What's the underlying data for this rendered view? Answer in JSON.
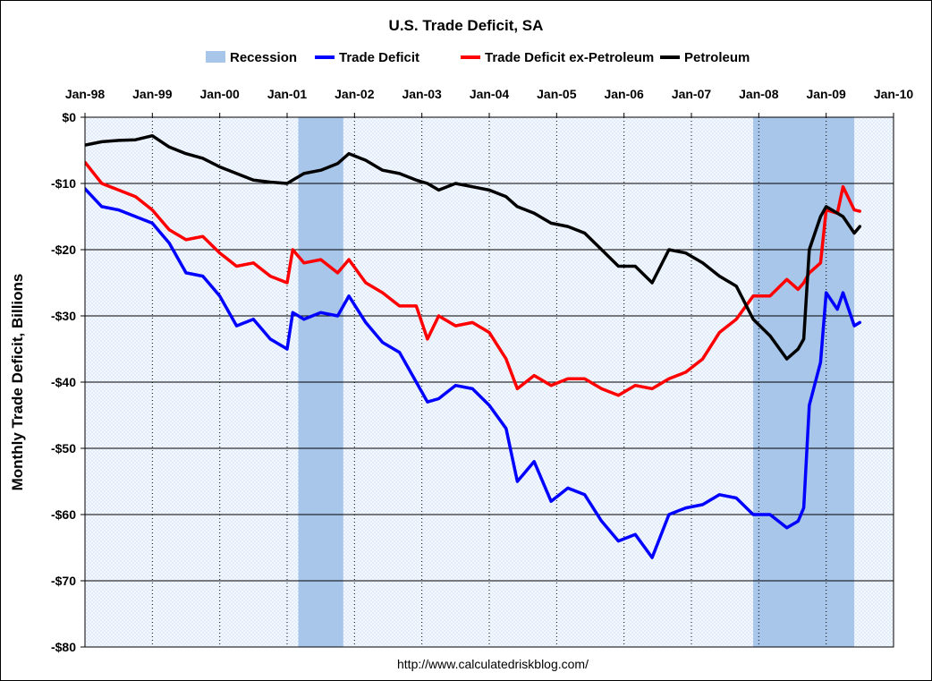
{
  "chart_data": {
    "type": "line",
    "title": "U.S. Trade Deficit, SA",
    "ylabel": "Monthly Trade Deficit, Billions",
    "xlabel": "",
    "source_text": "http://www.calculatedriskblog.com/",
    "x_start": "Jan-98",
    "x_end": "Jan-10",
    "x_ticks": [
      "Jan-98",
      "Jan-99",
      "Jan-00",
      "Jan-01",
      "Jan-02",
      "Jan-03",
      "Jan-04",
      "Jan-05",
      "Jan-06",
      "Jan-07",
      "Jan-08",
      "Jan-09",
      "Jan-10"
    ],
    "y_ticks": [
      "$0",
      "-$10",
      "-$20",
      "-$30",
      "-$40",
      "-$50",
      "-$60",
      "-$70",
      "-$80"
    ],
    "ylim": [
      -80,
      0
    ],
    "grid": true,
    "legend_position": "top",
    "legend": [
      {
        "label": "Recession",
        "color": "#a8c5ea",
        "kind": "band"
      },
      {
        "label": "Trade Deficit",
        "color": "#0000ff",
        "kind": "line"
      },
      {
        "label": "Trade Deficit ex-Petroleum",
        "color": "#ff0000",
        "kind": "line"
      },
      {
        "label": "Petroleum",
        "color": "#000000",
        "kind": "line"
      }
    ],
    "recessions": [
      {
        "start": "Mar-01",
        "end": "Nov-01"
      },
      {
        "start": "Dec-07",
        "end": "Jun-09"
      }
    ],
    "series": [
      {
        "name": "Trade Deficit",
        "color": "#0000ff",
        "points": [
          [
            "Jan-98",
            -10.8
          ],
          [
            "Apr-98",
            -13.5
          ],
          [
            "Jul-98",
            -14.0
          ],
          [
            "Oct-98",
            -15.0
          ],
          [
            "Jan-99",
            -16.0
          ],
          [
            "Apr-99",
            -19.0
          ],
          [
            "Jul-99",
            -23.5
          ],
          [
            "Oct-99",
            -24.0
          ],
          [
            "Jan-00",
            -27.0
          ],
          [
            "Apr-00",
            -31.5
          ],
          [
            "Jul-00",
            -30.5
          ],
          [
            "Oct-00",
            -33.5
          ],
          [
            "Jan-01",
            -35.0
          ],
          [
            "Feb-01",
            -29.5
          ],
          [
            "Apr-01",
            -30.5
          ],
          [
            "Jul-01",
            -29.5
          ],
          [
            "Oct-01",
            -30.0
          ],
          [
            "Dec-01",
            -27.0
          ],
          [
            "Mar-02",
            -31.0
          ],
          [
            "Jun-02",
            -34.0
          ],
          [
            "Sep-02",
            -35.5
          ],
          [
            "Dec-02",
            -40.0
          ],
          [
            "Feb-03",
            -43.0
          ],
          [
            "Apr-03",
            -42.5
          ],
          [
            "Jul-03",
            -40.5
          ],
          [
            "Oct-03",
            -41.0
          ],
          [
            "Jan-04",
            -43.5
          ],
          [
            "Apr-04",
            -47.0
          ],
          [
            "Jun-04",
            -55.0
          ],
          [
            "Sep-04",
            -52.0
          ],
          [
            "Dec-04",
            -58.0
          ],
          [
            "Mar-05",
            -56.0
          ],
          [
            "Jun-05",
            -57.0
          ],
          [
            "Sep-05",
            -61.0
          ],
          [
            "Dec-05",
            -64.0
          ],
          [
            "Mar-06",
            -63.0
          ],
          [
            "Jun-06",
            -66.5
          ],
          [
            "Sep-06",
            -60.0
          ],
          [
            "Dec-06",
            -59.0
          ],
          [
            "Mar-07",
            -58.5
          ],
          [
            "Jun-07",
            -57.0
          ],
          [
            "Sep-07",
            -57.5
          ],
          [
            "Dec-07",
            -60.0
          ],
          [
            "Mar-08",
            -60.0
          ],
          [
            "Jun-08",
            -62.0
          ],
          [
            "Aug-08",
            -61.0
          ],
          [
            "Sep-08",
            -59.0
          ],
          [
            "Oct-08",
            -43.5
          ],
          [
            "Dec-08",
            -37.0
          ],
          [
            "Jan-09",
            -26.5
          ],
          [
            "Mar-09",
            -29.0
          ],
          [
            "Apr-09",
            -26.5
          ],
          [
            "Jun-09",
            -31.5
          ],
          [
            "Jul-09",
            -31.0
          ]
        ]
      },
      {
        "name": "Trade Deficit ex-Petroleum",
        "color": "#ff0000",
        "points": [
          [
            "Jan-98",
            -6.8
          ],
          [
            "Apr-98",
            -10.0
          ],
          [
            "Jul-98",
            -11.0
          ],
          [
            "Oct-98",
            -12.0
          ],
          [
            "Jan-99",
            -14.0
          ],
          [
            "Apr-99",
            -17.0
          ],
          [
            "Jul-99",
            -18.5
          ],
          [
            "Oct-99",
            -18.0
          ],
          [
            "Jan-00",
            -20.5
          ],
          [
            "Apr-00",
            -22.5
          ],
          [
            "Jul-00",
            -22.0
          ],
          [
            "Oct-00",
            -24.0
          ],
          [
            "Jan-01",
            -25.0
          ],
          [
            "Feb-01",
            -20.0
          ],
          [
            "Apr-01",
            -22.0
          ],
          [
            "Jul-01",
            -21.5
          ],
          [
            "Oct-01",
            -23.5
          ],
          [
            "Dec-01",
            -21.5
          ],
          [
            "Mar-02",
            -25.0
          ],
          [
            "Jun-02",
            -26.5
          ],
          [
            "Sep-02",
            -28.5
          ],
          [
            "Dec-02",
            -28.5
          ],
          [
            "Feb-03",
            -33.5
          ],
          [
            "Apr-03",
            -30.0
          ],
          [
            "Jul-03",
            -31.5
          ],
          [
            "Oct-03",
            -31.0
          ],
          [
            "Jan-04",
            -32.5
          ],
          [
            "Apr-04",
            -36.5
          ],
          [
            "Jun-04",
            -41.0
          ],
          [
            "Sep-04",
            -39.0
          ],
          [
            "Dec-04",
            -40.5
          ],
          [
            "Mar-05",
            -39.5
          ],
          [
            "Jun-05",
            -39.5
          ],
          [
            "Sep-05",
            -41.0
          ],
          [
            "Dec-05",
            -42.0
          ],
          [
            "Mar-06",
            -40.5
          ],
          [
            "Jun-06",
            -41.0
          ],
          [
            "Sep-06",
            -39.5
          ],
          [
            "Dec-06",
            -38.5
          ],
          [
            "Mar-07",
            -36.5
          ],
          [
            "Jun-07",
            -32.5
          ],
          [
            "Sep-07",
            -30.5
          ],
          [
            "Dec-07",
            -27.0
          ],
          [
            "Mar-08",
            -27.0
          ],
          [
            "Jun-08",
            -24.5
          ],
          [
            "Aug-08",
            -26.0
          ],
          [
            "Sep-08",
            -25.0
          ],
          [
            "Oct-08",
            -23.5
          ],
          [
            "Dec-08",
            -22.0
          ],
          [
            "Jan-09",
            -14.0
          ],
          [
            "Mar-09",
            -14.5
          ],
          [
            "Apr-09",
            -10.5
          ],
          [
            "Jun-09",
            -14.0
          ],
          [
            "Jul-09",
            -14.2
          ]
        ]
      },
      {
        "name": "Petroleum",
        "color": "#000000",
        "points": [
          [
            "Jan-98",
            -4.2
          ],
          [
            "Apr-98",
            -3.7
          ],
          [
            "Jul-98",
            -3.5
          ],
          [
            "Oct-98",
            -3.4
          ],
          [
            "Jan-99",
            -2.8
          ],
          [
            "Apr-99",
            -4.5
          ],
          [
            "Jul-99",
            -5.5
          ],
          [
            "Oct-99",
            -6.2
          ],
          [
            "Jan-00",
            -7.5
          ],
          [
            "Apr-00",
            -8.5
          ],
          [
            "Jul-00",
            -9.5
          ],
          [
            "Oct-00",
            -9.8
          ],
          [
            "Jan-01",
            -10.0
          ],
          [
            "Feb-01",
            -9.5
          ],
          [
            "Apr-01",
            -8.5
          ],
          [
            "Jul-01",
            -8.0
          ],
          [
            "Oct-01",
            -7.0
          ],
          [
            "Dec-01",
            -5.5
          ],
          [
            "Mar-02",
            -6.5
          ],
          [
            "Jun-02",
            -8.0
          ],
          [
            "Sep-02",
            -8.5
          ],
          [
            "Dec-02",
            -9.5
          ],
          [
            "Feb-03",
            -10.0
          ],
          [
            "Apr-03",
            -11.0
          ],
          [
            "Jul-03",
            -10.0
          ],
          [
            "Oct-03",
            -10.5
          ],
          [
            "Jan-04",
            -11.0
          ],
          [
            "Apr-04",
            -12.0
          ],
          [
            "Jun-04",
            -13.5
          ],
          [
            "Sep-04",
            -14.5
          ],
          [
            "Dec-04",
            -16.0
          ],
          [
            "Mar-05",
            -16.5
          ],
          [
            "Jun-05",
            -17.5
          ],
          [
            "Sep-05",
            -20.0
          ],
          [
            "Dec-05",
            -22.5
          ],
          [
            "Mar-06",
            -22.5
          ],
          [
            "Jun-06",
            -25.0
          ],
          [
            "Sep-06",
            -20.0
          ],
          [
            "Dec-06",
            -20.5
          ],
          [
            "Mar-07",
            -22.0
          ],
          [
            "Jun-07",
            -24.0
          ],
          [
            "Sep-07",
            -25.5
          ],
          [
            "Dec-07",
            -30.5
          ],
          [
            "Mar-08",
            -33.0
          ],
          [
            "Jun-08",
            -36.5
          ],
          [
            "Aug-08",
            -35.0
          ],
          [
            "Sep-08",
            -33.5
          ],
          [
            "Oct-08",
            -20.0
          ],
          [
            "Dec-08",
            -15.0
          ],
          [
            "Jan-09",
            -13.5
          ],
          [
            "Mar-09",
            -14.5
          ],
          [
            "Apr-09",
            -15.0
          ],
          [
            "Jun-09",
            -17.5
          ],
          [
            "Jul-09",
            -16.5
          ]
        ]
      }
    ]
  }
}
